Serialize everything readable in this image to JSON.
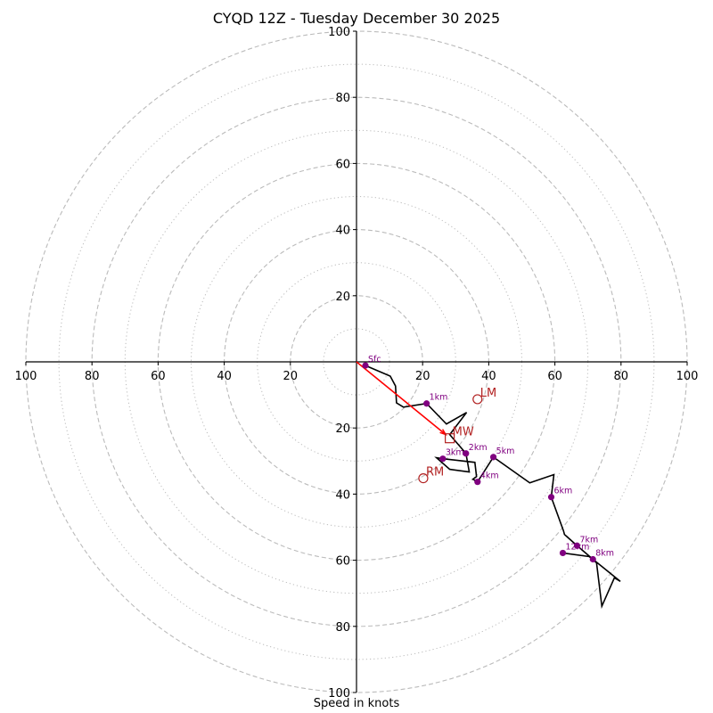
{
  "chart_data": {
    "type": "line",
    "subtype": "hodograph",
    "title": "CYQD 12Z - Tuesday December 30 2025",
    "xlabel": "Speed in knots",
    "ylabel": "",
    "xlim": [
      -100,
      100
    ],
    "ylim": [
      -100,
      100
    ],
    "ring_interval_major": 20,
    "ring_interval_minor": 10,
    "x_tick_labels": [
      "100",
      "80",
      "60",
      "40",
      "20",
      "20",
      "40",
      "60",
      "80",
      "100"
    ],
    "x_tick_values": [
      -100,
      -80,
      -60,
      -40,
      -20,
      20,
      40,
      60,
      80,
      100
    ],
    "y_tick_labels": [
      "100",
      "80",
      "60",
      "40",
      "20",
      "20",
      "40",
      "60",
      "80",
      "100"
    ],
    "y_tick_values": [
      100,
      80,
      60,
      40,
      20,
      -20,
      -40,
      -60,
      -80,
      -100
    ],
    "grid": true,
    "series": [
      {
        "name": "hodograph",
        "color": "#000000",
        "u": [
          2.7,
          10.2,
          11.8,
          12.1,
          14.2,
          21.2,
          27.2,
          33.3,
          28.2,
          33.1,
          34.1,
          28.2,
          24.2,
          26.1,
          35.8,
          36.3,
          35.2,
          36.6,
          41.4,
          52.4,
          59.7,
          58.9,
          62.6,
          62.9,
          66.7,
          71.5,
          79.8,
          78.0,
          74.2,
          72.6,
          70.4,
          62.4
        ],
        "v": [
          -1.1,
          -4.3,
          -7.3,
          -12.4,
          -13.7,
          -12.6,
          -18.8,
          -15.3,
          -22.0,
          -27.7,
          -33.3,
          -32.5,
          -29.0,
          -29.3,
          -30.4,
          -34.7,
          -35.5,
          -36.3,
          -28.8,
          -36.6,
          -34.1,
          -40.9,
          -51.1,
          -52.2,
          -55.6,
          -59.7,
          -66.4,
          -65.3,
          -73.9,
          -60.8,
          -58.9,
          -57.8
        ]
      }
    ],
    "height_markers": [
      {
        "label": "Sfc",
        "u": 2.7,
        "v": -1.1
      },
      {
        "label": "1km",
        "u": 21.2,
        "v": -12.6
      },
      {
        "label": "2km",
        "u": 33.1,
        "v": -27.7
      },
      {
        "label": "3km",
        "u": 26.1,
        "v": -29.3
      },
      {
        "label": "4km",
        "u": 36.6,
        "v": -36.3
      },
      {
        "label": "5km",
        "u": 41.4,
        "v": -28.8
      },
      {
        "label": "6km",
        "u": 58.9,
        "v": -40.9
      },
      {
        "label": "7km",
        "u": 66.7,
        "v": -55.6
      },
      {
        "label": "8km",
        "u": 71.5,
        "v": -59.7
      },
      {
        "label": "12km",
        "u": 62.4,
        "v": -57.8
      }
    ],
    "storm_motion": [
      {
        "label": "LM",
        "u": 36.6,
        "v": -11.3,
        "marker": "circle"
      },
      {
        "label": "MW",
        "u": 28.2,
        "v": -23.1,
        "marker": "square"
      },
      {
        "label": "RM",
        "u": 20.2,
        "v": -35.2,
        "marker": "circle"
      }
    ],
    "mean_wind_vector": {
      "u": 27.0,
      "v": -22.0
    },
    "colors": {
      "trace": "#000000",
      "height_dots": "#800080",
      "motion": "#b22222",
      "vector": "#ff0000",
      "grid": "#bbbbbb"
    }
  }
}
